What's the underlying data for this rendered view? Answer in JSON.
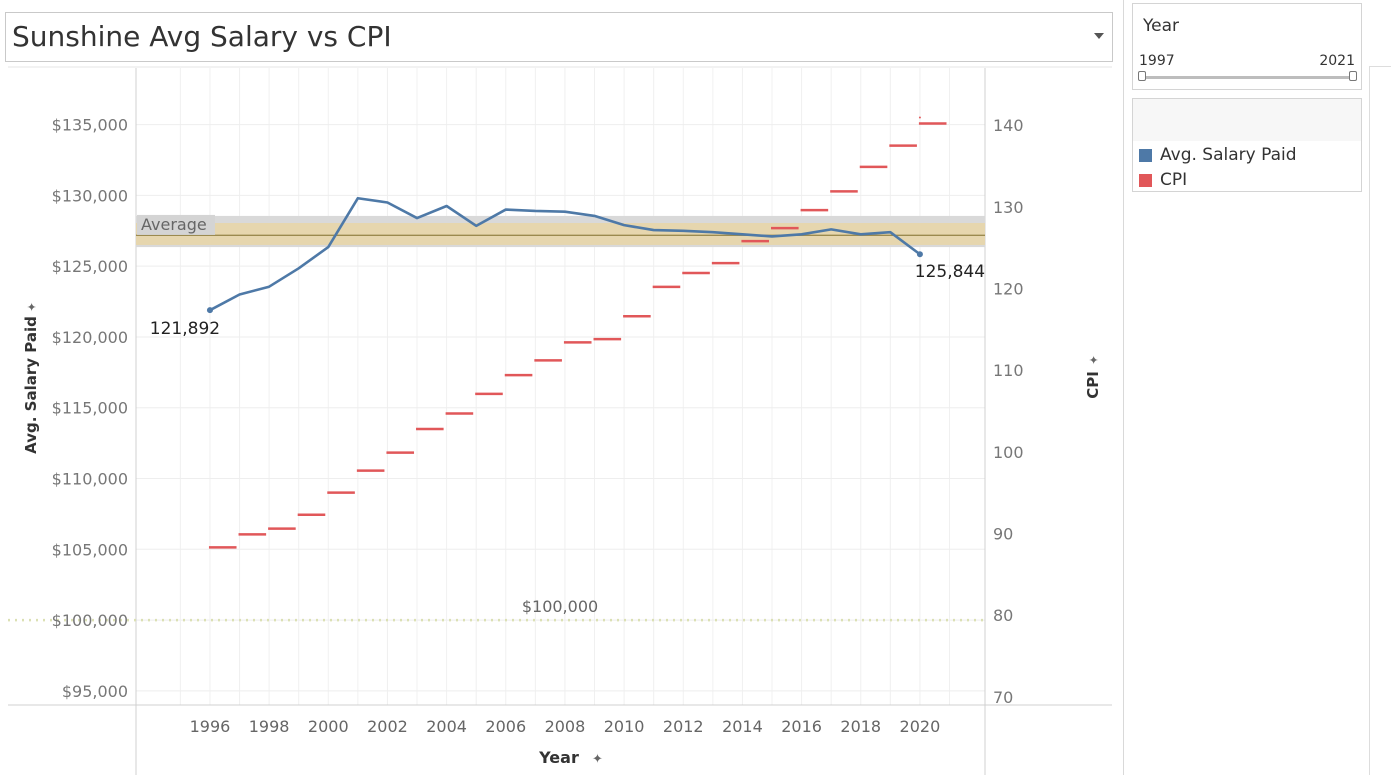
{
  "dashboard": {
    "title": "Sunshine Avg Salary vs CPI"
  },
  "filter": {
    "title": "Year",
    "min_label": "1997",
    "max_label": "2021"
  },
  "legend": {
    "items": [
      {
        "label": "Avg. Salary Paid",
        "color": "#4e79a7"
      },
      {
        "label": "CPI",
        "color": "#e15759"
      }
    ]
  },
  "chart_data": {
    "type": "line",
    "xlabel": "Year",
    "ylabel_left": "Avg. Salary Paid",
    "ylabel_right": "CPI",
    "x_ticks": [
      "1996",
      "1998",
      "2000",
      "2002",
      "2004",
      "2006",
      "2008",
      "2010",
      "2012",
      "2014",
      "2016",
      "2018",
      "2020"
    ],
    "y_left_ticks": [
      "$95,000",
      "$100,000",
      "$105,000",
      "$110,000",
      "$115,000",
      "$120,000",
      "$125,000",
      "$130,000",
      "$135,000"
    ],
    "y_left_tick_values": [
      95000,
      100000,
      105000,
      110000,
      115000,
      120000,
      125000,
      130000,
      135000
    ],
    "y_right_ticks": [
      "70",
      "80",
      "90",
      "100",
      "110",
      "120",
      "130",
      "140"
    ],
    "y_right_tick_values": [
      70,
      80,
      90,
      100,
      110,
      120,
      130,
      140
    ],
    "ylim_left": [
      94000,
      139000
    ],
    "ylim_right": [
      69,
      147
    ],
    "xlim": [
      1993.5,
      2022.2
    ],
    "grid": true,
    "legend_position": "right",
    "series": [
      {
        "name": "Avg. Salary Paid",
        "axis": "left",
        "mark": "line",
        "color": "#4e79a7",
        "x": [
          1996,
          1997,
          1998,
          1999,
          2000,
          2001,
          2002,
          2003,
          2004,
          2005,
          2006,
          2007,
          2008,
          2009,
          2010,
          2011,
          2012,
          2013,
          2014,
          2015,
          2016,
          2017,
          2018,
          2019,
          2020
        ],
        "y": [
          121892,
          123000,
          123550,
          124850,
          126350,
          129800,
          129500,
          128400,
          129250,
          127850,
          129000,
          128900,
          128850,
          128550,
          127900,
          127550,
          127500,
          127400,
          127250,
          127100,
          127250,
          127600,
          127250,
          127400,
          125844
        ]
      },
      {
        "name": "CPI",
        "axis": "right",
        "mark": "dash",
        "color": "#e15759",
        "x": [
          1996,
          1997,
          1998,
          1999,
          2000,
          2001,
          2002,
          2003,
          2004,
          2005,
          2006,
          2007,
          2008,
          2009,
          2010,
          2011,
          2012,
          2013,
          2014,
          2015,
          2016,
          2017,
          2018,
          2019,
          2020
        ],
        "y": [
          88.3,
          89.9,
          90.6,
          92.3,
          95.0,
          97.7,
          99.9,
          102.8,
          104.7,
          107.1,
          109.4,
          111.2,
          113.4,
          113.8,
          116.6,
          120.2,
          121.9,
          123.1,
          125.8,
          127.4,
          129.6,
          131.9,
          134.9,
          137.5,
          140.2
        ]
      }
    ],
    "annotations": [
      {
        "text": "121,892",
        "x": 1996,
        "y": 121892,
        "axis": "left"
      },
      {
        "text": "125,844",
        "x": 2020,
        "y": 125844,
        "axis": "left"
      }
    ],
    "reference_lines": [
      {
        "label": "Average",
        "axis": "left",
        "value": 127180,
        "band": [
          126350,
          128550
        ],
        "inner_band": [
          126500,
          128050
        ]
      },
      {
        "label": "$100,000",
        "axis": "left",
        "value": 100000
      }
    ]
  }
}
